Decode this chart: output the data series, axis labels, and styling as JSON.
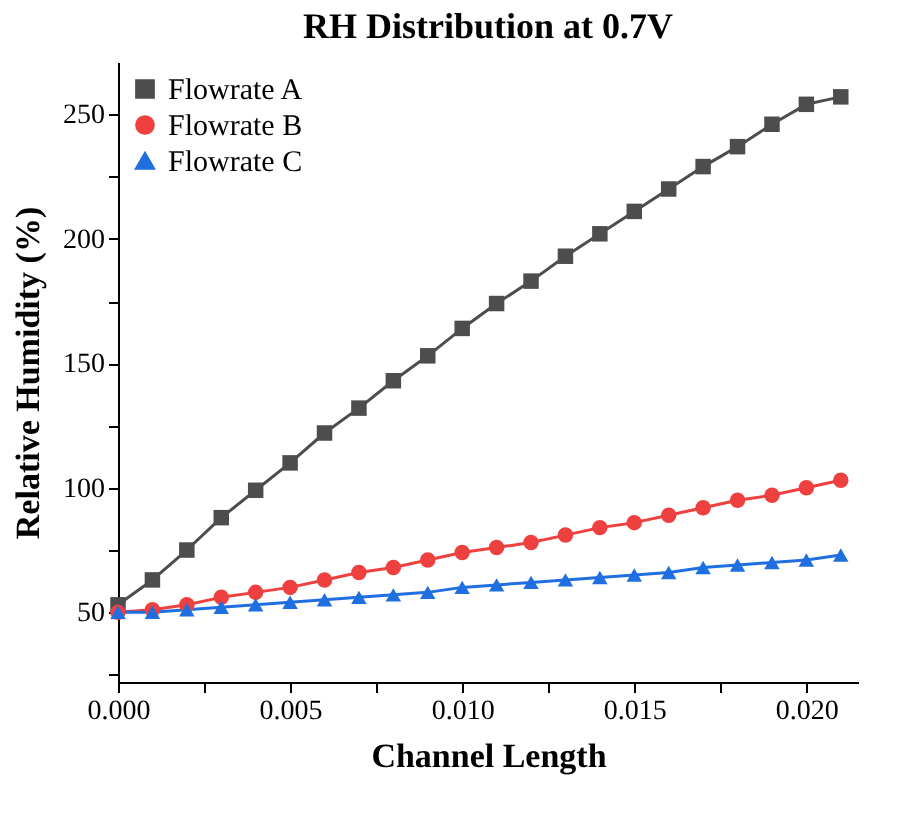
{
  "chart_data": {
    "type": "line",
    "title": "RH Distribution at 0.7V",
    "xlabel": "Channel Length",
    "ylabel": "Relative Humidity (%)",
    "x": [
      0,
      0.001,
      0.002,
      0.003,
      0.004,
      0.005,
      0.006,
      0.007,
      0.008,
      0.009,
      0.01,
      0.011,
      0.012,
      0.013,
      0.014,
      0.015,
      0.016,
      0.017,
      0.018,
      0.019,
      0.02,
      0.021
    ],
    "series": [
      {
        "name": "Flowrate A",
        "color": "#4d4d4d",
        "marker": "square",
        "values": [
          53,
          63,
          75,
          88,
          99,
          110,
          122,
          132,
          143,
          153,
          164,
          174,
          183,
          193,
          202,
          211,
          220,
          229,
          237,
          246,
          254,
          257
        ]
      },
      {
        "name": "Flowrate B",
        "color": "#ef4040",
        "marker": "circle",
        "values": [
          50,
          51,
          53,
          56,
          58,
          60,
          63,
          66,
          68,
          71,
          74,
          76,
          78,
          81,
          84,
          86,
          89,
          92,
          95,
          97,
          100,
          103
        ]
      },
      {
        "name": "Flowrate C",
        "color": "#1f6fe0",
        "marker": "triangle",
        "values": [
          50,
          50,
          51,
          52,
          53,
          54,
          55,
          56,
          57,
          58,
          60,
          61,
          62,
          63,
          64,
          65,
          66,
          68,
          69,
          70,
          71,
          73
        ]
      }
    ],
    "xlim": [
      0,
      0.0215
    ],
    "xticks": [
      {
        "value": 0,
        "label": "0.000"
      },
      {
        "value": 0.0025,
        "label": null
      },
      {
        "value": 0.005,
        "label": "0.005"
      },
      {
        "value": 0.0075,
        "label": null
      },
      {
        "value": 0.01,
        "label": "0.010"
      },
      {
        "value": 0.0125,
        "label": null
      },
      {
        "value": 0.015,
        "label": "0.015"
      },
      {
        "value": 0.0175,
        "label": null
      },
      {
        "value": 0.02,
        "label": "0.020"
      }
    ],
    "ylim": [
      22,
      271
    ],
    "yticks": [
      {
        "value": 25,
        "label": null
      },
      50,
      {
        "value": 75,
        "label": null
      },
      100,
      {
        "value": 125,
        "label": null
      },
      150,
      {
        "value": 175,
        "label": null
      },
      200,
      {
        "value": 225,
        "label": null
      },
      250
    ],
    "grid": false,
    "legend": "top left",
    "line_style": "solid"
  }
}
